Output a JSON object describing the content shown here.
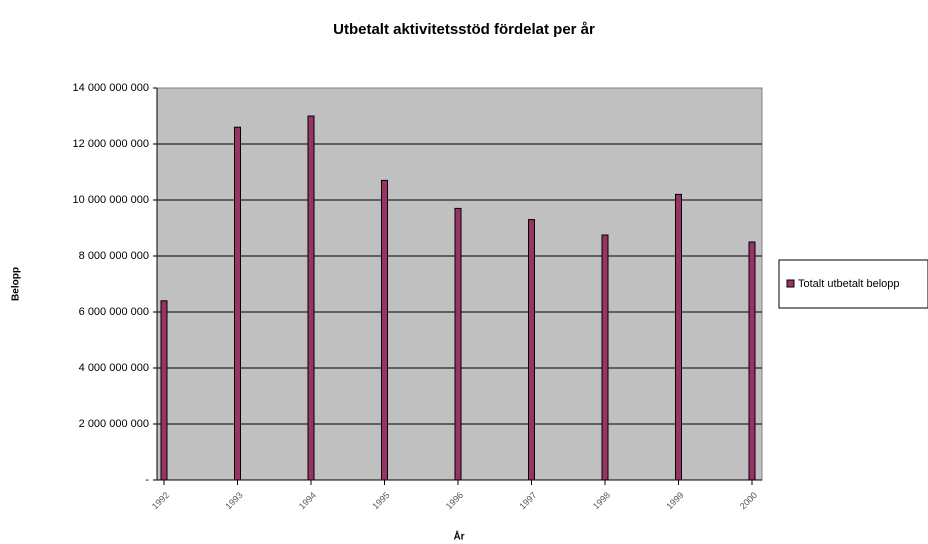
{
  "chart_data": {
    "type": "bar",
    "title": "Utbetalt aktivitetsstöd fördelat per år",
    "x_label": "År",
    "y_label": "Belopp",
    "categories": [
      "1992",
      "1993",
      "1994",
      "1995",
      "1996",
      "1997",
      "1998",
      "1999",
      "2000"
    ],
    "series": [
      {
        "name": "Totalt utbetalt belopp",
        "color": "#993366",
        "values": [
          6400000000,
          12600000000,
          13000000000,
          10700000000,
          9700000000,
          9300000000,
          8750000000,
          10200000000,
          8500000000
        ]
      }
    ],
    "ylim": [
      0,
      14000000000
    ],
    "yticks": [
      {
        "value": 0,
        "label": "-"
      },
      {
        "value": 2000000000,
        "label": "2 000 000 000"
      },
      {
        "value": 4000000000,
        "label": "4 000 000 000"
      },
      {
        "value": 6000000000,
        "label": "6 000 000 000"
      },
      {
        "value": 8000000000,
        "label": "8 000 000 000"
      },
      {
        "value": 10000000000,
        "label": "10 000 000 000"
      },
      {
        "value": 12000000000,
        "label": "12 000 000 000"
      },
      {
        "value": 14000000000,
        "label": "14 000 000 000"
      }
    ],
    "grid": true,
    "legend": "right"
  }
}
